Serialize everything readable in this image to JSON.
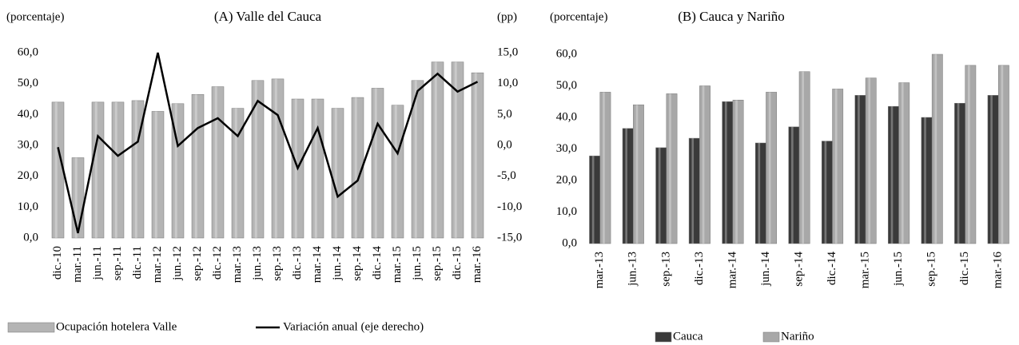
{
  "chart_data": [
    {
      "type": "bar_line",
      "title": "(A) Valle  del Cauca",
      "y_label": "(porcentaje)",
      "y2_label": "(pp)",
      "categories": [
        "dic.-10",
        "mar.-11",
        "jun.-11",
        "sep.-11",
        "dic.-11",
        "mar.-12",
        "jun.-12",
        "sep.-12",
        "dic.-12",
        "mar.-13",
        "jun.-13",
        "sep.-13",
        "dic.-13",
        "mar.-14",
        "jun.-14",
        "sep.-14",
        "dic.-14",
        "mar.-15",
        "jun.-15",
        "sep.-15",
        "dic.-15",
        "mar.-16"
      ],
      "series": [
        {
          "name": "Ocupación hotelera Valle",
          "type": "bar",
          "color": "#b4b4b4",
          "values": [
            44,
            26,
            44,
            44,
            44.5,
            41,
            43.5,
            46.5,
            49,
            42,
            51,
            51.5,
            45,
            45,
            42,
            45.5,
            48.5,
            43,
            51,
            57,
            57,
            53.5
          ]
        },
        {
          "name": "Variación anual (eje derecho)",
          "type": "line",
          "axis": "y2",
          "color": "#000000",
          "values": [
            -0.3,
            -14.2,
            1.5,
            -1.7,
            0.6,
            15,
            -0.1,
            2.8,
            4.4,
            1.5,
            7.2,
            4.9,
            -3.7,
            2.8,
            -8.3,
            -5.7,
            3.5,
            -1.3,
            8.8,
            11.6,
            8.7,
            10.3
          ]
        }
      ],
      "ylim": [
        0,
        60
      ],
      "yticks": [
        {
          "value": 0,
          "label": "0,0"
        },
        {
          "value": 10,
          "label": "10,0"
        },
        {
          "value": 20,
          "label": "20,0"
        },
        {
          "value": 30,
          "label": "30,0"
        },
        {
          "value": 40,
          "label": "40,0"
        },
        {
          "value": 50,
          "label": "50,0"
        },
        {
          "value": 60,
          "label": "60,0"
        }
      ],
      "y2lim": [
        -15,
        15
      ],
      "y2ticks": [
        {
          "value": -15,
          "label": "-15,0"
        },
        {
          "value": -10,
          "label": "-10,0"
        },
        {
          "value": -5,
          "label": "-5,0"
        },
        {
          "value": 0,
          "label": "0,0"
        },
        {
          "value": 5,
          "label": "5,0"
        },
        {
          "value": 10,
          "label": "10,0"
        },
        {
          "value": 15,
          "label": "15,0"
        }
      ]
    },
    {
      "type": "bar",
      "title": "(B) Cauca y Nariño",
      "y_label": "(porcentaje)",
      "categories": [
        "mar.-13",
        "jun.-13",
        "sep.-13",
        "dic.-13",
        "mar.-14",
        "jun.-14",
        "sep.-14",
        "dic.-14",
        "mar.-15",
        "jun.-15",
        "sep.-15",
        "dic.-15",
        "mar.-16"
      ],
      "series": [
        {
          "name": "Cauca",
          "color": "#3a3a3a",
          "values": [
            27.8,
            36.5,
            30.4,
            33.4,
            45,
            31.9,
            37,
            32.5,
            47,
            43.5,
            40,
            44.5,
            47
          ]
        },
        {
          "name": "Nariño",
          "color": "#a8a8a8",
          "values": [
            48,
            44,
            47.5,
            50,
            45.5,
            48,
            54.5,
            49,
            52.5,
            51,
            60,
            56.5,
            56.5
          ]
        }
      ],
      "ylim": [
        0,
        60
      ],
      "yticks": [
        {
          "value": 0,
          "label": "0,0"
        },
        {
          "value": 10,
          "label": "10,0"
        },
        {
          "value": 20,
          "label": "20,0"
        },
        {
          "value": 30,
          "label": "30,0"
        },
        {
          "value": 40,
          "label": "40,0"
        },
        {
          "value": 50,
          "label": "50,0"
        },
        {
          "value": 60,
          "label": "60,0"
        }
      ]
    }
  ]
}
